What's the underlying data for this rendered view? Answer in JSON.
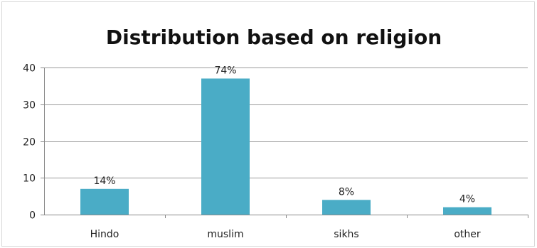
{
  "colors": {
    "bar": "#4aacc6",
    "grid": "#9a9a9a",
    "axis": "#8a8a8a",
    "frame": "#d8d8d8"
  },
  "chart_data": {
    "type": "bar",
    "title": "Distribution based on religion",
    "xlabel": "",
    "ylabel": "",
    "categories": [
      "Hindo",
      "muslim",
      "sikhs",
      "other"
    ],
    "values": [
      7,
      37,
      4,
      2
    ],
    "data_labels": [
      "14%",
      "74%",
      "8%",
      "4%"
    ],
    "ylim": [
      0,
      40
    ],
    "yticks": [
      0,
      10,
      20,
      30,
      40
    ],
    "grid": true,
    "legend": "none"
  }
}
